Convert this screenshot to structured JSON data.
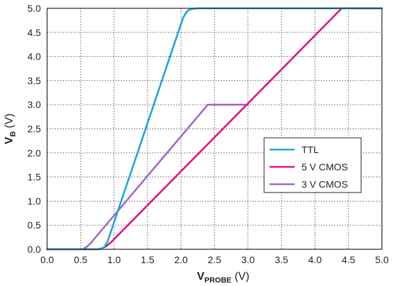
{
  "chart_data": {
    "type": "line",
    "xlabel": {
      "main": "V",
      "sub": "PROBE",
      "unit": " (V)"
    },
    "ylabel": {
      "main": "V",
      "sub": "B",
      "unit": " (V)"
    },
    "xlim": [
      0,
      5
    ],
    "ylim": [
      0,
      5
    ],
    "x_ticks": [
      "0.0",
      "0.5",
      "1.0",
      "1.5",
      "2.0",
      "2.5",
      "3.0",
      "3.5",
      "4.0",
      "4.5",
      "5.0"
    ],
    "y_ticks": [
      "0.0",
      "0.5",
      "1.0",
      "1.5",
      "2.0",
      "2.5",
      "3.0",
      "3.5",
      "4.0",
      "4.5",
      "5.0"
    ],
    "grid": true,
    "legend_position": "right-middle",
    "series": [
      {
        "name": "TTL",
        "color": "#19a6dd",
        "x": [
          0,
          0.78,
          0.85,
          0.9,
          2.03,
          2.08,
          2.12,
          2.18,
          2.25,
          2.35,
          5.0
        ],
        "y": [
          0,
          0,
          0.04,
          0.15,
          4.8,
          4.92,
          4.97,
          4.99,
          5.0,
          5.0,
          5.0
        ]
      },
      {
        "name": "5 V CMOS",
        "color": "#e2127e",
        "x": [
          0,
          0.76,
          0.82,
          0.88,
          0.95,
          4.4,
          5.0
        ],
        "y": [
          0,
          0,
          0.02,
          0.06,
          0.14,
          5.0,
          5.0
        ]
      },
      {
        "name": "3 V CMOS",
        "color": "#a366c4",
        "x": [
          0,
          0.53,
          0.58,
          0.64,
          2.4,
          3.0
        ],
        "y": [
          0,
          0,
          0.04,
          0.11,
          3.0,
          3.0
        ]
      }
    ]
  }
}
